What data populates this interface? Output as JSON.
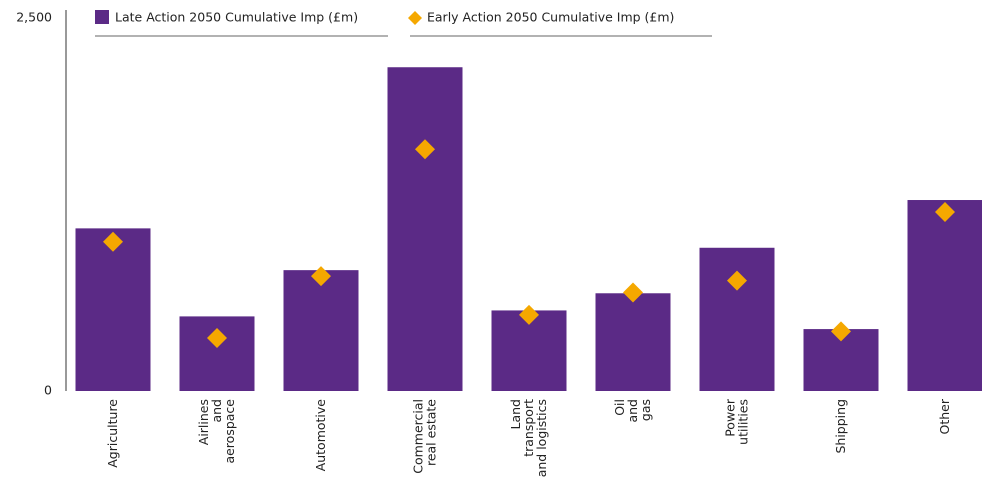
{
  "chart_data": {
    "type": "bar",
    "categories": [
      "Agriculture",
      "Airlines\nand\naerospace",
      "Automotive",
      "Commercial\nreal estate",
      "Land\ntransport\nand logistics",
      "Oil\nand\ngas",
      "Power\nutilities",
      "Shipping",
      "Other"
    ],
    "series": [
      {
        "name": "Late Action 2050 Cumulative Imp (£m)",
        "color": "#5b2a86",
        "marker": "bar",
        "values": [
          1090,
          500,
          810,
          2170,
          540,
          655,
          960,
          415,
          1280
        ]
      },
      {
        "name": "Early Action 2050 Cumulative Imp (£m)",
        "color": "#f5a800",
        "marker": "diamond",
        "values": [
          1000,
          355,
          770,
          1620,
          510,
          660,
          740,
          400,
          1200
        ]
      }
    ],
    "ylim": [
      0,
      2500
    ],
    "yticks": [
      0,
      {
        "value": 2500,
        "label": "2,500"
      }
    ],
    "legend": "top"
  }
}
